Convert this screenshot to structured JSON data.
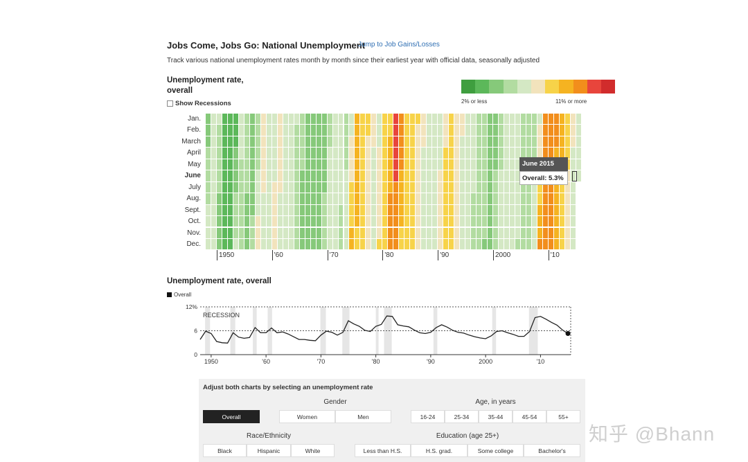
{
  "header": {
    "title": "Jobs Come, Jobs Go: National Unemployment",
    "jump_link": "Jump to Job Gains/Losses",
    "subtitle": "Track various national unemployment rates month by month since their earliest year with official data, seasonally adjusted"
  },
  "heatmap": {
    "title_line1": "Unemployment rate,",
    "title_line2": "overall",
    "show_recessions_label": "Show Recessions",
    "legend_low": "2% or less",
    "legend_high": "11% or more",
    "legend_colors": [
      "#3f9e3f",
      "#5cb85a",
      "#86c97a",
      "#b2dca1",
      "#d4e8c4",
      "#f2e3bc",
      "#f7d349",
      "#f5b321",
      "#f28e1c",
      "#e8453c",
      "#d12c2c"
    ],
    "months": [
      "Jan.",
      "Feb.",
      "March",
      "April",
      "May",
      "June",
      "July",
      "Aug.",
      "Sept.",
      "Oct.",
      "Nov.",
      "Dec."
    ],
    "highlight_month": "June",
    "tooltip_title": "June 2015",
    "tooltip_value": "Overall: 5.3%"
  },
  "line_chart_section": {
    "title": "Unemployment rate, overall",
    "legend_label": "Overall",
    "recession_label": "RECESSION"
  },
  "chart_data": [
    {
      "type": "heatmap",
      "x_tick_labels": [
        "1950",
        "'60",
        "'70",
        "'80",
        "'90",
        "2000",
        "'10"
      ],
      "x_start_year": 1948,
      "x_end_year": 2015,
      "y_labels": [
        "Jan.",
        "Feb.",
        "March",
        "April",
        "May",
        "June",
        "July",
        "Aug.",
        "Sept.",
        "Oct.",
        "Nov.",
        "Dec."
      ],
      "annual_rates": [
        3.8,
        5.9,
        5.3,
        3.3,
        3.0,
        2.9,
        5.5,
        4.4,
        4.1,
        4.3,
        6.8,
        5.5,
        5.5,
        6.7,
        5.5,
        5.7,
        5.2,
        4.5,
        3.8,
        3.8,
        3.6,
        3.5,
        4.9,
        5.9,
        5.6,
        4.9,
        5.6,
        8.5,
        7.7,
        7.1,
        6.1,
        5.8,
        7.1,
        7.6,
        9.7,
        9.6,
        7.5,
        7.2,
        7.0,
        6.2,
        5.5,
        5.3,
        5.6,
        6.8,
        7.5,
        6.9,
        6.1,
        5.6,
        5.4,
        4.9,
        4.5,
        4.2,
        4.0,
        4.7,
        5.8,
        6.0,
        5.5,
        5.1,
        4.6,
        4.6,
        5.8,
        9.3,
        9.6,
        8.9,
        8.1,
        7.4,
        6.2,
        5.3
      ],
      "value_unit": "%"
    },
    {
      "type": "line",
      "series": [
        {
          "name": "Overall",
          "x": [
            1948,
            1949,
            1950,
            1951,
            1952,
            1953,
            1954,
            1955,
            1956,
            1957,
            1958,
            1959,
            1960,
            1961,
            1962,
            1963,
            1964,
            1965,
            1966,
            1967,
            1968,
            1969,
            1970,
            1971,
            1972,
            1973,
            1974,
            1975,
            1976,
            1977,
            1978,
            1979,
            1980,
            1981,
            1982,
            1983,
            1984,
            1985,
            1986,
            1987,
            1988,
            1989,
            1990,
            1991,
            1992,
            1993,
            1994,
            1995,
            1996,
            1997,
            1998,
            1999,
            2000,
            2001,
            2002,
            2003,
            2004,
            2005,
            2006,
            2007,
            2008,
            2009,
            2010,
            2011,
            2012,
            2013,
            2014,
            2015
          ],
          "y": [
            3.8,
            5.9,
            5.3,
            3.3,
            3.0,
            2.9,
            5.5,
            4.4,
            4.1,
            4.3,
            6.8,
            5.5,
            5.5,
            6.7,
            5.5,
            5.7,
            5.2,
            4.5,
            3.8,
            3.8,
            3.6,
            3.5,
            4.9,
            5.9,
            5.6,
            4.9,
            5.6,
            8.5,
            7.7,
            7.1,
            6.1,
            5.8,
            7.1,
            7.6,
            9.7,
            9.6,
            7.5,
            7.2,
            7.0,
            6.2,
            5.5,
            5.3,
            5.6,
            6.8,
            7.5,
            6.9,
            6.1,
            5.6,
            5.4,
            4.9,
            4.5,
            4.2,
            4.0,
            4.7,
            5.8,
            6.0,
            5.5,
            5.1,
            4.6,
            4.6,
            5.8,
            9.3,
            9.6,
            8.9,
            8.1,
            7.4,
            6.2,
            5.3
          ]
        }
      ],
      "y_ticks": [
        "12%",
        "6",
        "0"
      ],
      "ylim": [
        0,
        12
      ],
      "x_tick_labels": [
        "1950",
        "'60",
        "'70",
        "'80",
        "'90",
        "2000",
        "'10"
      ],
      "recessions": [
        [
          1948.9,
          1949.8
        ],
        [
          1953.5,
          1954.4
        ],
        [
          1957.6,
          1958.3
        ],
        [
          1960.3,
          1961.1
        ],
        [
          1969.9,
          1970.9
        ],
        [
          1973.9,
          1975.2
        ],
        [
          1980.0,
          1980.5
        ],
        [
          1981.5,
          1982.9
        ],
        [
          1990.5,
          1991.2
        ],
        [
          2001.2,
          2001.9
        ],
        [
          2007.9,
          2009.5
        ]
      ]
    }
  ],
  "controls": {
    "heading": "Adjust both charts by selecting an unemployment rate",
    "gender_label": "Gender",
    "age_label": "Age, in years",
    "race_label": "Race/Ethnicity",
    "education_label": "Education (age 25+)",
    "overall": "Overall",
    "gender": [
      "Women",
      "Men"
    ],
    "age": [
      "16-24",
      "25-34",
      "35-44",
      "45-54",
      "55+"
    ],
    "race": [
      "Black",
      "Hispanic",
      "White"
    ],
    "education": [
      "Less than H.S.",
      "H.S. grad.",
      "Some college",
      "Bachelor's"
    ]
  },
  "watermark": "知乎 @Bhann"
}
